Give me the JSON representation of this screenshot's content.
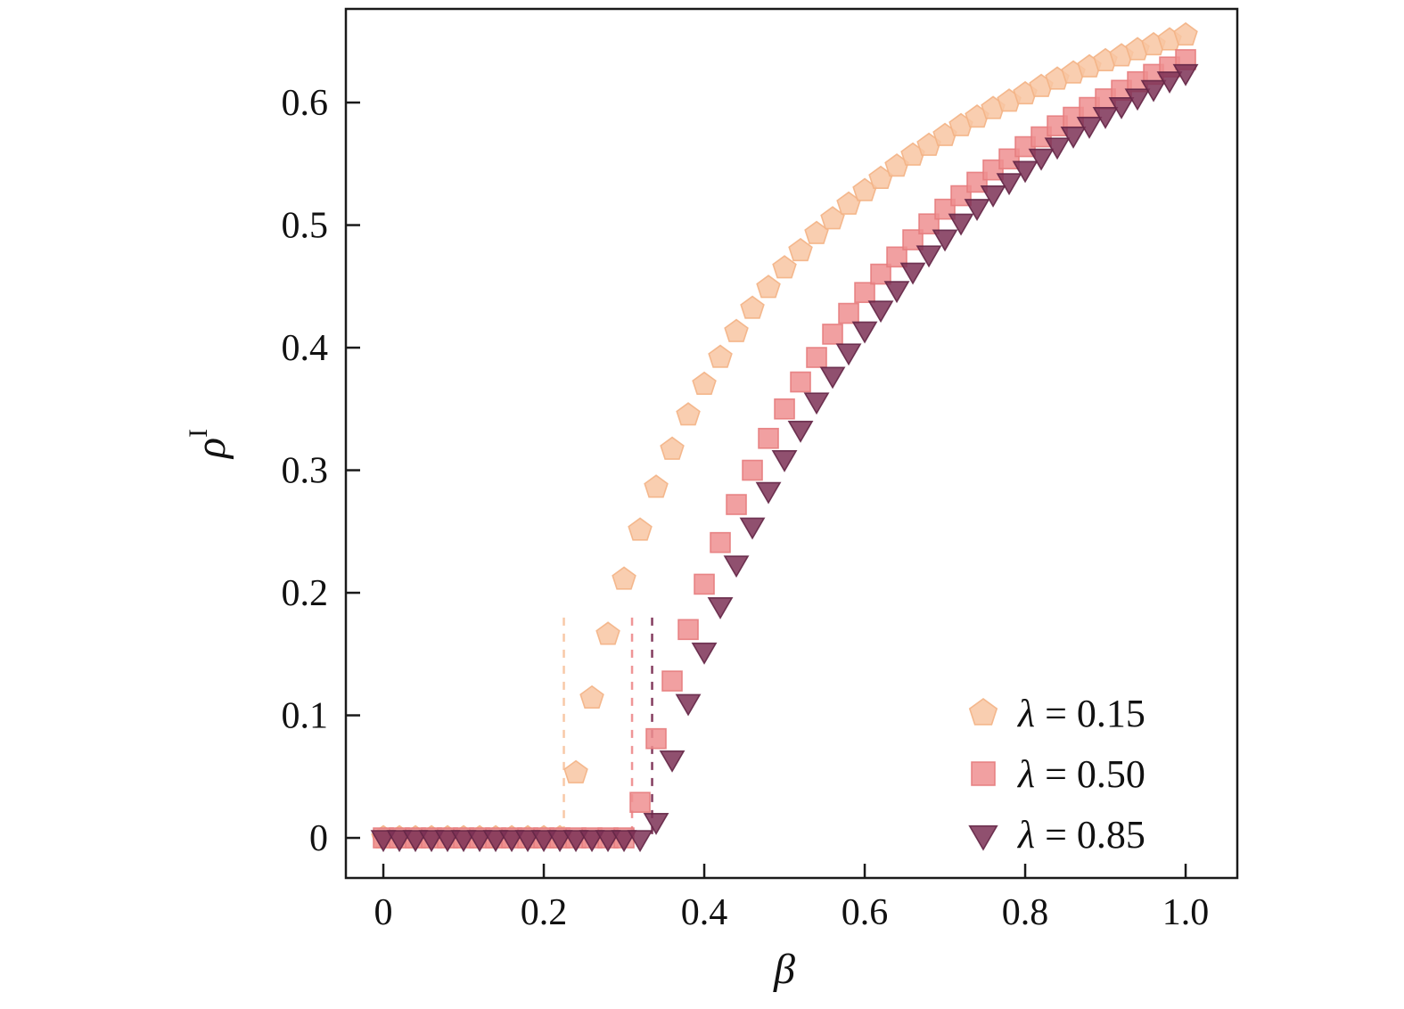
{
  "figure": {
    "background": "#ffffff",
    "frame_color": "#1a1a1a",
    "text_color": "#111111"
  },
  "chart_data": {
    "type": "scatter",
    "title": "",
    "xlabel": "β",
    "ylabel_base": "ρ",
    "ylabel_sup": "I",
    "xlim": [
      -0.0467,
      1.0644
    ],
    "ylim": [
      -0.0327,
      0.6764
    ],
    "grid": false,
    "legend_position": "lower right",
    "x_ticks": [
      0,
      0.2,
      0.4,
      0.6,
      0.8,
      1.0
    ],
    "x_tick_labels": [
      "0",
      "0.2",
      "0.4",
      "0.6",
      "0.8",
      "1.0"
    ],
    "y_ticks": [
      0,
      0.1,
      0.2,
      0.3,
      0.4,
      0.5,
      0.6
    ],
    "y_tick_labels": [
      "0",
      "0.1",
      "0.2",
      "0.3",
      "0.4",
      "0.5",
      "0.6"
    ],
    "x": [
      0,
      0.02,
      0.04,
      0.06,
      0.08,
      0.1,
      0.12,
      0.14,
      0.16,
      0.18,
      0.2,
      0.22,
      0.24,
      0.26,
      0.28,
      0.3,
      0.32,
      0.34,
      0.36,
      0.38,
      0.4,
      0.42,
      0.44,
      0.46,
      0.48,
      0.5,
      0.52,
      0.54,
      0.56,
      0.58,
      0.6,
      0.62,
      0.64,
      0.66,
      0.68,
      0.7,
      0.72,
      0.74,
      0.76,
      0.78,
      0.8,
      0.82,
      0.84,
      0.86,
      0.88,
      0.9,
      0.92,
      0.94,
      0.96,
      0.98,
      1.0
    ],
    "series": [
      {
        "label": "λ = 0.15",
        "label_symbol": "λ",
        "label_rest": " = 0.15",
        "marker": "pentagon",
        "color": "#F8C5A2",
        "edge_color": "#F3B285",
        "threshold": {
          "x": 0.225,
          "y_bottom": 0.003,
          "y_top": 0.185
        },
        "y": [
          0,
          0,
          0,
          0,
          0,
          0,
          0,
          0,
          0,
          0,
          0,
          0,
          0.053,
          0.114,
          0.166,
          0.211,
          0.251,
          0.286,
          0.317,
          0.345,
          0.37,
          0.392,
          0.413,
          0.432,
          0.449,
          0.465,
          0.479,
          0.493,
          0.505,
          0.517,
          0.528,
          0.538,
          0.548,
          0.557,
          0.565,
          0.573,
          0.581,
          0.588,
          0.595,
          0.601,
          0.607,
          0.613,
          0.619,
          0.624,
          0.629,
          0.634,
          0.638,
          0.643,
          0.647,
          0.651,
          0.655
        ]
      },
      {
        "label": "λ = 0.50",
        "label_symbol": "λ",
        "label_rest": " = 0.50",
        "marker": "square",
        "color": "#EE8F90",
        "edge_color": "#E67C7D",
        "threshold": {
          "x": 0.31,
          "y_bottom": 0.003,
          "y_top": 0.185
        },
        "y": [
          0,
          0,
          0,
          0,
          0,
          0,
          0,
          0,
          0,
          0,
          0,
          0,
          0,
          0,
          0,
          0,
          0.029,
          0.081,
          0.128,
          0.17,
          0.207,
          0.241,
          0.272,
          0.3,
          0.326,
          0.35,
          0.372,
          0.392,
          0.411,
          0.428,
          0.445,
          0.46,
          0.474,
          0.488,
          0.501,
          0.513,
          0.524,
          0.535,
          0.545,
          0.554,
          0.564,
          0.572,
          0.581,
          0.588,
          0.596,
          0.603,
          0.61,
          0.617,
          0.623,
          0.629,
          0.635
        ]
      },
      {
        "label": "λ = 0.85",
        "label_symbol": "λ",
        "label_rest": " = 0.85",
        "marker": "triangle-down",
        "color": "#7D3156",
        "edge_color": "#642646",
        "threshold": {
          "x": 0.335,
          "y_bottom": 0.003,
          "y_top": 0.18
        },
        "y": [
          0,
          0,
          0,
          0,
          0,
          0,
          0,
          0,
          0,
          0,
          0,
          0,
          0,
          0,
          0,
          0,
          0,
          0.014,
          0.065,
          0.111,
          0.153,
          0.19,
          0.224,
          0.255,
          0.284,
          0.31,
          0.334,
          0.357,
          0.378,
          0.397,
          0.415,
          0.432,
          0.448,
          0.463,
          0.477,
          0.49,
          0.503,
          0.515,
          0.526,
          0.536,
          0.546,
          0.556,
          0.565,
          0.574,
          0.582,
          0.59,
          0.598,
          0.605,
          0.612,
          0.619,
          0.625
        ]
      }
    ]
  }
}
